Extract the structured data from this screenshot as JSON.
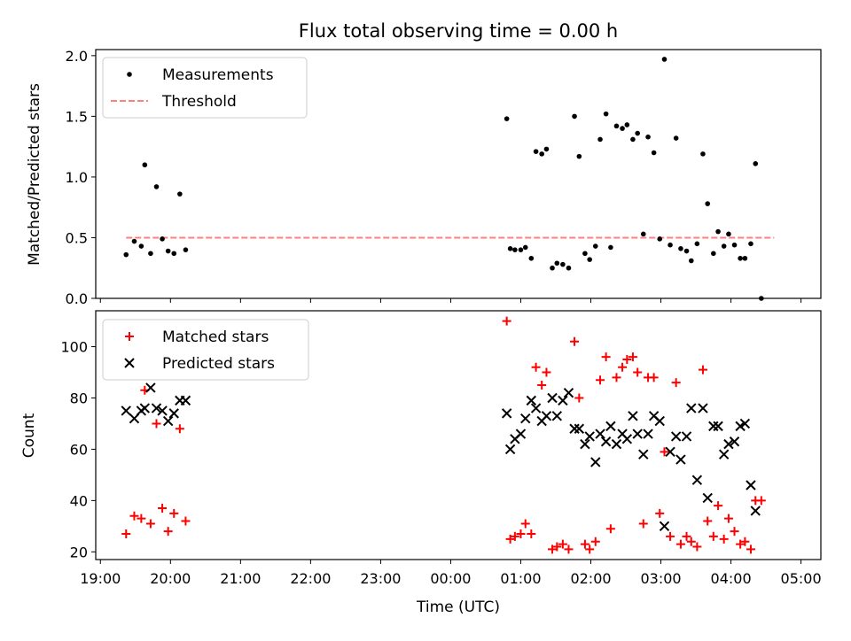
{
  "title": "Flux total observing time = 0.00 h",
  "chart_data": [
    {
      "type": "scatter",
      "panel": "top",
      "ylabel": "Matched/Predicted stars",
      "ylim": [
        0,
        2.05
      ],
      "yticks": [
        0.0,
        0.5,
        1.0,
        1.5,
        2.0
      ],
      "ytick_labels": [
        "0.0",
        "0.5",
        "1.0",
        "1.5",
        "2.0"
      ],
      "legend_position": "upper-left",
      "series": [
        {
          "name": "Measurements",
          "marker": "dot",
          "color": "#000000",
          "points": [
            [
              "19:22",
              0.36
            ],
            [
              "19:29",
              0.47
            ],
            [
              "19:35",
              0.43
            ],
            [
              "19:38",
              1.1
            ],
            [
              "19:43",
              0.37
            ],
            [
              "19:48",
              0.92
            ],
            [
              "19:53",
              0.49
            ],
            [
              "19:58",
              0.39
            ],
            [
              "20:03",
              0.37
            ],
            [
              "20:08",
              0.86
            ],
            [
              "20:13",
              0.4
            ],
            [
              "00:48",
              1.48
            ],
            [
              "00:51",
              0.41
            ],
            [
              "00:55",
              0.4
            ],
            [
              "01:00",
              0.4
            ],
            [
              "01:04",
              0.42
            ],
            [
              "01:09",
              0.33
            ],
            [
              "01:13",
              1.21
            ],
            [
              "01:18",
              1.19
            ],
            [
              "01:22",
              1.23
            ],
            [
              "01:27",
              0.25
            ],
            [
              "01:31",
              0.29
            ],
            [
              "01:36",
              0.28
            ],
            [
              "01:41",
              0.25
            ],
            [
              "01:46",
              1.5
            ],
            [
              "01:50",
              1.17
            ],
            [
              "01:55",
              0.37
            ],
            [
              "01:59",
              0.32
            ],
            [
              "02:04",
              0.43
            ],
            [
              "02:08",
              1.31
            ],
            [
              "02:13",
              1.52
            ],
            [
              "02:17",
              0.42
            ],
            [
              "02:22",
              1.42
            ],
            [
              "02:27",
              1.4
            ],
            [
              "02:31",
              1.43
            ],
            [
              "02:36",
              1.31
            ],
            [
              "02:40",
              1.36
            ],
            [
              "02:45",
              0.53
            ],
            [
              "02:49",
              1.33
            ],
            [
              "02:54",
              1.2
            ],
            [
              "02:59",
              0.49
            ],
            [
              "03:03",
              1.97
            ],
            [
              "03:08",
              0.44
            ],
            [
              "03:13",
              1.32
            ],
            [
              "03:17",
              0.41
            ],
            [
              "03:22",
              0.39
            ],
            [
              "03:26",
              0.31
            ],
            [
              "03:31",
              0.45
            ],
            [
              "03:36",
              1.19
            ],
            [
              "03:40",
              0.78
            ],
            [
              "03:45",
              0.37
            ],
            [
              "03:49",
              0.55
            ],
            [
              "03:54",
              0.43
            ],
            [
              "03:58",
              0.53
            ],
            [
              "04:03",
              0.44
            ],
            [
              "04:08",
              0.33
            ],
            [
              "04:12",
              0.33
            ],
            [
              "04:17",
              0.45
            ],
            [
              "04:21",
              1.11
            ],
            [
              "04:26",
              0.0
            ]
          ]
        },
        {
          "name": "Threshold",
          "style": "dashed",
          "color": "#ff7f7f",
          "x": [
            "19:22",
            "04:37"
          ],
          "values": [
            0.5,
            0.5
          ]
        }
      ]
    },
    {
      "type": "scatter",
      "panel": "bottom",
      "xlabel": "Time (UTC)",
      "ylabel": "Count",
      "ylim": [
        17,
        114
      ],
      "yticks": [
        20,
        40,
        60,
        80,
        100
      ],
      "ytick_labels": [
        "20",
        "40",
        "60",
        "80",
        "100"
      ],
      "xlim": [
        "18:56",
        "05:17"
      ],
      "xticks": [
        "19:00",
        "20:00",
        "21:00",
        "22:00",
        "23:00",
        "00:00",
        "01:00",
        "02:00",
        "03:00",
        "04:00",
        "05:00"
      ],
      "legend_position": "upper-left",
      "series": [
        {
          "name": "Matched stars",
          "marker": "plus",
          "color": "#ff0000",
          "points": [
            [
              "19:22",
              27
            ],
            [
              "19:29",
              34
            ],
            [
              "19:35",
              33
            ],
            [
              "19:38",
              83
            ],
            [
              "19:43",
              31
            ],
            [
              "19:48",
              70
            ],
            [
              "19:53",
              37
            ],
            [
              "19:58",
              28
            ],
            [
              "20:03",
              35
            ],
            [
              "20:08",
              68
            ],
            [
              "20:13",
              32
            ],
            [
              "00:48",
              110
            ],
            [
              "00:51",
              25
            ],
            [
              "00:55",
              26
            ],
            [
              "01:00",
              27
            ],
            [
              "01:04",
              31
            ],
            [
              "01:09",
              27
            ],
            [
              "01:13",
              92
            ],
            [
              "01:18",
              85
            ],
            [
              "01:22",
              90
            ],
            [
              "01:27",
              21
            ],
            [
              "01:31",
              22
            ],
            [
              "01:36",
              23
            ],
            [
              "01:41",
              21
            ],
            [
              "01:46",
              102
            ],
            [
              "01:50",
              80
            ],
            [
              "01:55",
              23
            ],
            [
              "01:59",
              21
            ],
            [
              "02:04",
              24
            ],
            [
              "02:08",
              87
            ],
            [
              "02:13",
              96
            ],
            [
              "02:17",
              29
            ],
            [
              "02:22",
              88
            ],
            [
              "02:27",
              92
            ],
            [
              "02:31",
              95
            ],
            [
              "02:36",
              96
            ],
            [
              "02:40",
              90
            ],
            [
              "02:45",
              31
            ],
            [
              "02:49",
              88
            ],
            [
              "02:54",
              88
            ],
            [
              "02:59",
              35
            ],
            [
              "03:03",
              59
            ],
            [
              "03:08",
              26
            ],
            [
              "03:13",
              86
            ],
            [
              "03:17",
              23
            ],
            [
              "03:22",
              26
            ],
            [
              "03:26",
              24
            ],
            [
              "03:31",
              22
            ],
            [
              "03:36",
              91
            ],
            [
              "03:40",
              32
            ],
            [
              "03:45",
              26
            ],
            [
              "03:49",
              38
            ],
            [
              "03:54",
              25
            ],
            [
              "03:58",
              33
            ],
            [
              "04:03",
              28
            ],
            [
              "04:08",
              23
            ],
            [
              "04:12",
              24
            ],
            [
              "04:17",
              21
            ],
            [
              "04:21",
              40
            ],
            [
              "04:26",
              40
            ]
          ]
        },
        {
          "name": "Predicted stars",
          "marker": "x",
          "color": "#000000",
          "points": [
            [
              "19:22",
              75
            ],
            [
              "19:29",
              72
            ],
            [
              "19:35",
              75
            ],
            [
              "19:38",
              76
            ],
            [
              "19:43",
              84
            ],
            [
              "19:48",
              76
            ],
            [
              "19:53",
              75
            ],
            [
              "19:58",
              71
            ],
            [
              "20:03",
              74
            ],
            [
              "20:08",
              79
            ],
            [
              "20:13",
              79
            ],
            [
              "00:48",
              74
            ],
            [
              "00:51",
              60
            ],
            [
              "00:55",
              64
            ],
            [
              "01:00",
              66
            ],
            [
              "01:04",
              72
            ],
            [
              "01:09",
              79
            ],
            [
              "01:13",
              76
            ],
            [
              "01:18",
              71
            ],
            [
              "01:22",
              73
            ],
            [
              "01:27",
              80
            ],
            [
              "01:31",
              73
            ],
            [
              "01:36",
              79
            ],
            [
              "01:41",
              82
            ],
            [
              "01:46",
              68
            ],
            [
              "01:50",
              68
            ],
            [
              "01:55",
              62
            ],
            [
              "01:59",
              65
            ],
            [
              "02:04",
              55
            ],
            [
              "02:08",
              66
            ],
            [
              "02:13",
              63
            ],
            [
              "02:17",
              69
            ],
            [
              "02:22",
              62
            ],
            [
              "02:27",
              66
            ],
            [
              "02:31",
              64
            ],
            [
              "02:36",
              73
            ],
            [
              "02:40",
              66
            ],
            [
              "02:45",
              58
            ],
            [
              "02:49",
              66
            ],
            [
              "02:54",
              73
            ],
            [
              "02:59",
              71
            ],
            [
              "03:03",
              30
            ],
            [
              "03:08",
              59
            ],
            [
              "03:13",
              65
            ],
            [
              "03:17",
              56
            ],
            [
              "03:22",
              65
            ],
            [
              "03:26",
              76
            ],
            [
              "03:31",
              48
            ],
            [
              "03:36",
              76
            ],
            [
              "03:40",
              41
            ],
            [
              "03:45",
              69
            ],
            [
              "03:49",
              69
            ],
            [
              "03:54",
              58
            ],
            [
              "03:58",
              62
            ],
            [
              "04:03",
              63
            ],
            [
              "04:08",
              69
            ],
            [
              "04:12",
              70
            ],
            [
              "04:17",
              46
            ],
            [
              "04:21",
              36
            ]
          ]
        }
      ]
    }
  ]
}
